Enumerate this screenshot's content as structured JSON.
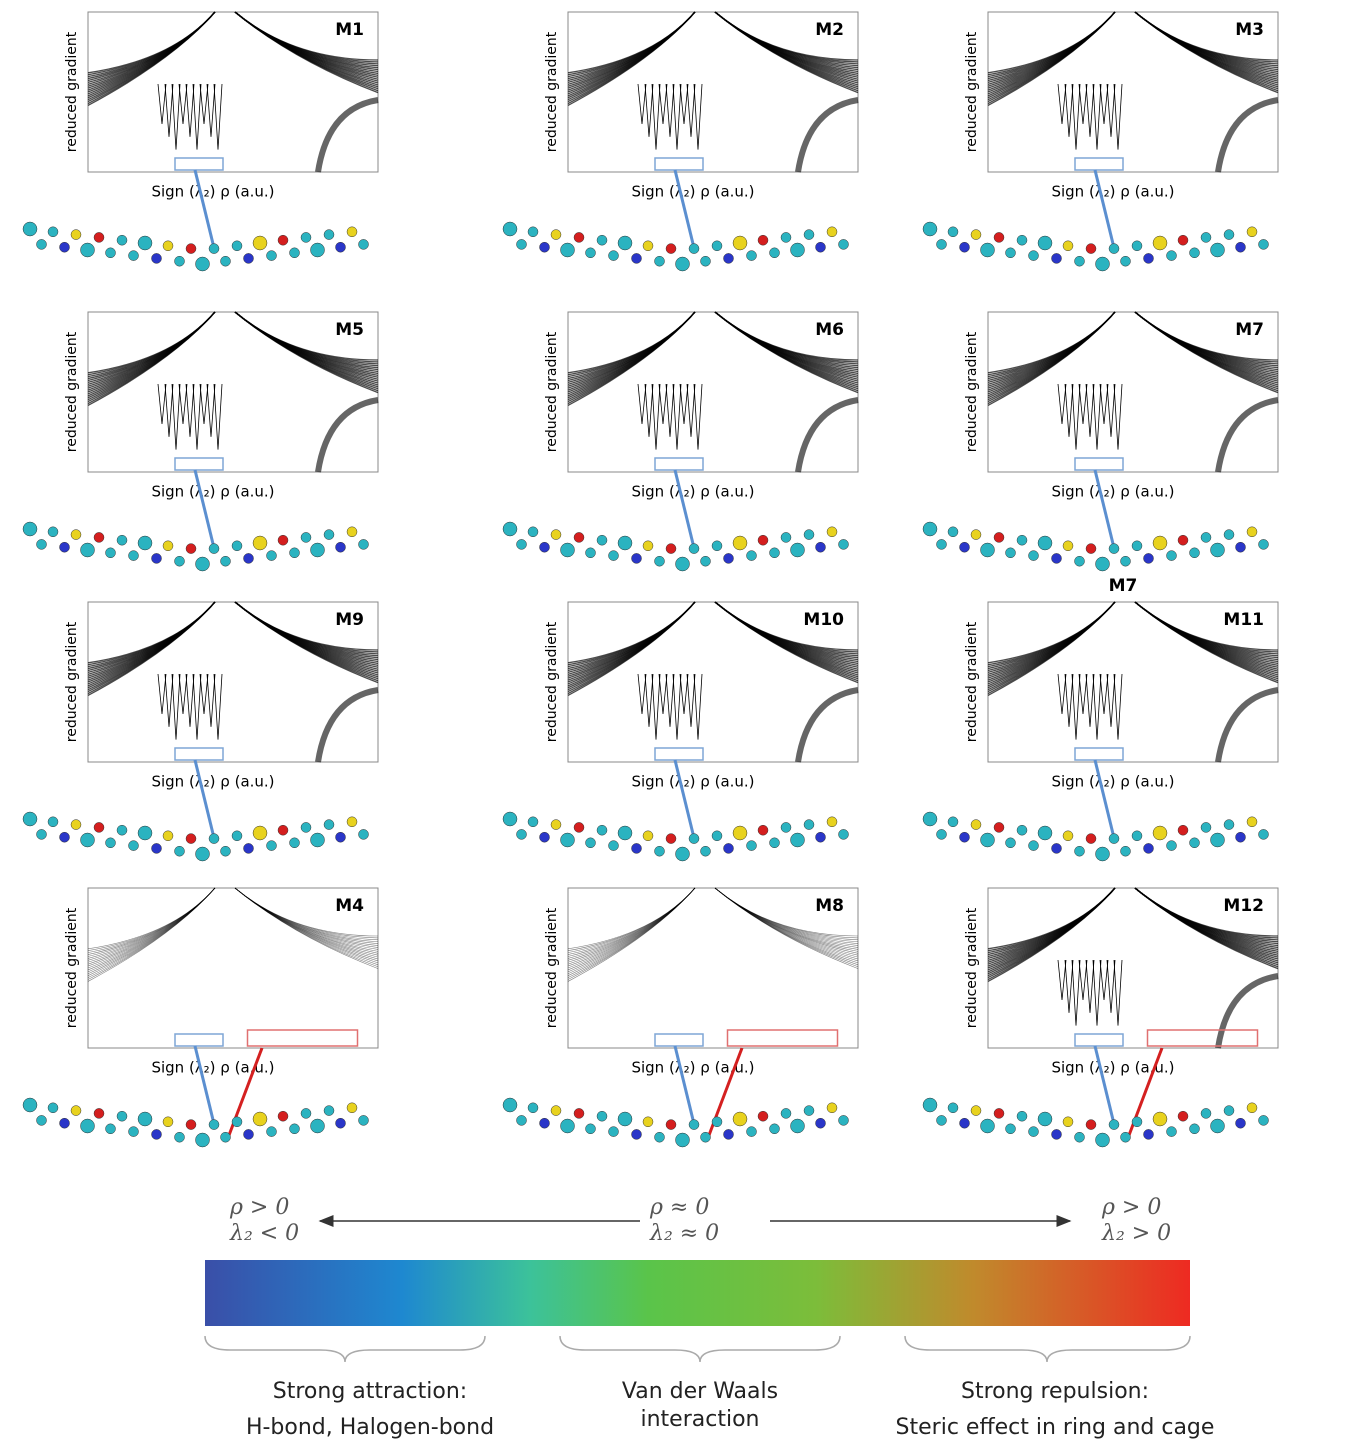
{
  "panels": [
    {
      "label": "M1",
      "y_label": "reduced gradient",
      "x_label": "Sign (λ₂) ρ (a.u.)"
    },
    {
      "label": "M2",
      "y_label": "reduced gradient",
      "x_label": "Sign (λ₂) ρ (a.u.)"
    },
    {
      "label": "M3",
      "y_label": "reduced gradient",
      "x_label": "Sign (λ₂) ρ (a.u.)"
    },
    {
      "label": "M5",
      "y_label": "reduced gradient",
      "x_label": "Sign (λ₂) ρ (a.u.)"
    },
    {
      "label": "M6",
      "y_label": "reduced gradient",
      "x_label": "Sign (λ₂) ρ (a.u.)"
    },
    {
      "label": "M7",
      "y_label": "reduced gradient",
      "x_label": "Sign (λ₂) ρ (a.u.)",
      "molecule_label": "M7"
    },
    {
      "label": "M9",
      "y_label": "reduced gradient",
      "x_label": "Sign (λ₂) ρ (a.u.)"
    },
    {
      "label": "M10",
      "y_label": "reduced gradient",
      "x_label": "Sign (λ₂) ρ (a.u.)"
    },
    {
      "label": "M11",
      "y_label": "reduced gradient",
      "x_label": "Sign (λ₂) ρ (a.u.)"
    },
    {
      "label": "M4",
      "y_label": "reduced gradient",
      "x_label": "Sign (λ₂) ρ (a.u.)"
    },
    {
      "label": "M8",
      "y_label": "reduced gradient",
      "x_label": "Sign (λ₂) ρ (a.u.)"
    },
    {
      "label": "M12",
      "y_label": "reduced gradient",
      "x_label": "Sign (λ₂) ρ (a.u.)"
    }
  ],
  "scale": {
    "left": {
      "line1": "ρ > 0",
      "line2": "λ₂ < 0"
    },
    "middle": {
      "line1": "ρ ≈ 0",
      "line2": "λ₂ ≈ 0"
    },
    "right": {
      "line1": "ρ > 0",
      "line2": "λ₂ > 0"
    }
  },
  "captions": [
    {
      "line1": "Strong attraction:",
      "line2": "H-bond, Halogen-bond"
    },
    {
      "line1": "Van der Waals",
      "line2": "interaction"
    },
    {
      "line1": "Strong repulsion:",
      "line2": "Steric effect in ring and cage"
    }
  ]
}
